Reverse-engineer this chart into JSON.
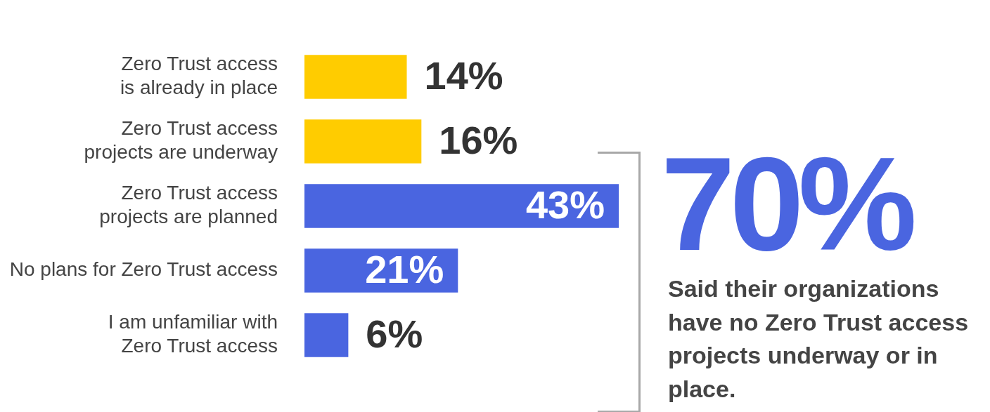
{
  "chart_data": {
    "type": "bar",
    "orientation": "horizontal",
    "categories": [
      "Zero Trust access is already in place",
      "Zero Trust access projects are underway",
      "Zero Trust access projects are planned",
      "No plans for Zero Trust access",
      "I am unfamiliar with Zero Trust access"
    ],
    "values": [
      14,
      16,
      43,
      21,
      6
    ],
    "colors": [
      "#ffcc00",
      "#ffcc00",
      "#4a65e0",
      "#4a65e0",
      "#4a65e0"
    ],
    "value_labels": [
      "14%",
      "16%",
      "43%",
      "21%",
      "6%"
    ],
    "annotations": [
      "70%",
      "Said their organizations have no Zero Trust access projects underway or in place."
    ]
  }
}
